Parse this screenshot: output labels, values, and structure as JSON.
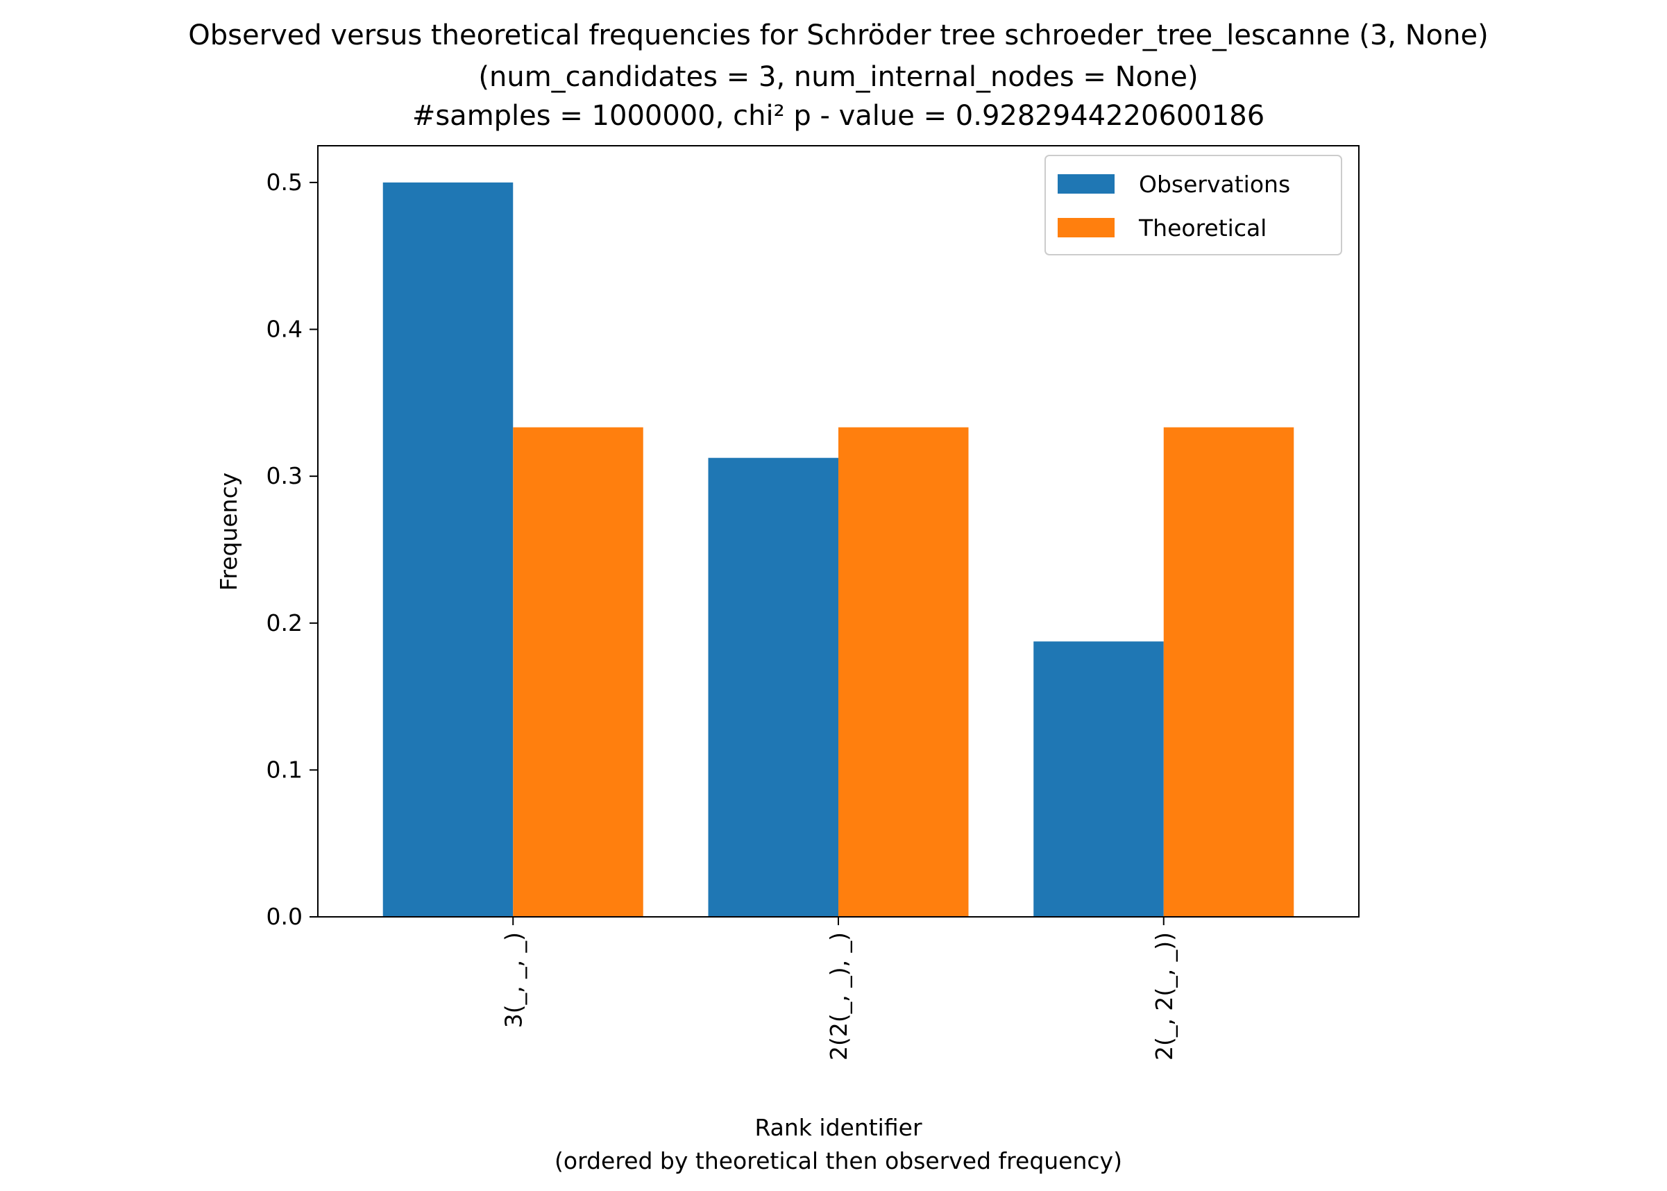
{
  "chart_data": {
    "type": "bar",
    "title_lines": [
      "Observed versus theoretical frequencies for Schröder tree schroeder_tree_lescanne (3, None)",
      "(num_candidates = 3, num_internal_nodes = None)",
      "#samples = 1000000, chi² p - value = 0.9282944220600186"
    ],
    "xlabel_lines": [
      "Rank identifier",
      "(ordered by theoretical then observed frequency)"
    ],
    "ylabel": "Frequency",
    "categories": [
      "3(_, _, _)",
      "2(2(_, _), _)",
      "2(_, 2(_, _))"
    ],
    "series": [
      {
        "name": "Observations",
        "color": "#1f77b4",
        "values": [
          0.5,
          0.3125,
          0.1875
        ]
      },
      {
        "name": "Theoretical",
        "color": "#ff7f0e",
        "values": [
          0.3333,
          0.3333,
          0.3333
        ]
      }
    ],
    "ylim": [
      0,
      0.525
    ],
    "yticks": [
      0.0,
      0.1,
      0.2,
      0.3,
      0.4,
      0.5
    ],
    "ytick_labels": [
      "0.0",
      "0.1",
      "0.2",
      "0.3",
      "0.4",
      "0.5"
    ],
    "legend_position": "top-right",
    "grid": false
  }
}
